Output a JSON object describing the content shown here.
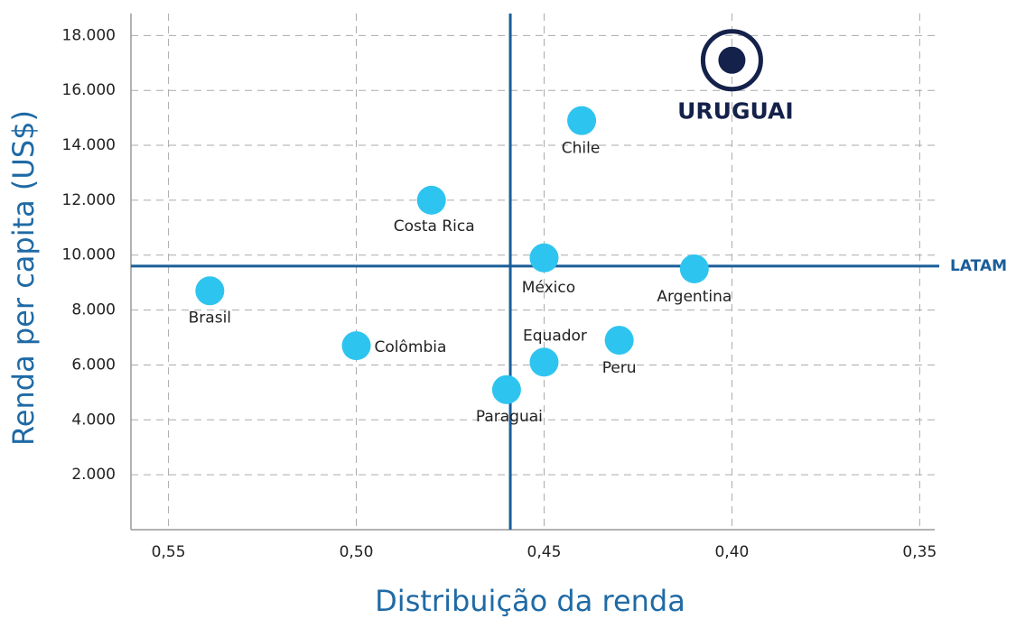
{
  "chart_data": {
    "type": "scatter",
    "x_label": "Distribuição da renda",
    "y_label": "Renda per capita (US$)",
    "xlim": [
      0.56,
      0.346
    ],
    "ylim": [
      0,
      18800
    ],
    "xticks": [
      {
        "value": 0.55,
        "label": "0,55"
      },
      {
        "value": 0.5,
        "label": "0,50"
      },
      {
        "value": 0.45,
        "label": "0,45"
      },
      {
        "value": 0.4,
        "label": "0,40"
      },
      {
        "value": 0.35,
        "label": "0,35"
      }
    ],
    "yticks": [
      {
        "value": 2000,
        "label": "2.000"
      },
      {
        "value": 4000,
        "label": "4.000"
      },
      {
        "value": 6000,
        "label": "6.000"
      },
      {
        "value": 8000,
        "label": "8.000"
      },
      {
        "value": 10000,
        "label": "10.000"
      },
      {
        "value": 12000,
        "label": "12.000"
      },
      {
        "value": 14000,
        "label": "14.000"
      },
      {
        "value": 16000,
        "label": "16.000"
      },
      {
        "value": 18000,
        "label": "18.000"
      }
    ],
    "grid": true,
    "points": [
      {
        "label": "Brasil",
        "x": 0.539,
        "y": 8700,
        "color": "#2ec4f0"
      },
      {
        "label": "Colômbia",
        "x": 0.5,
        "y": 6700,
        "color": "#2ec4f0"
      },
      {
        "label": "Costa Rica",
        "x": 0.48,
        "y": 12000,
        "color": "#2ec4f0"
      },
      {
        "label": "México",
        "x": 0.45,
        "y": 9900,
        "color": "#2ec4f0"
      },
      {
        "label": "Chile",
        "x": 0.44,
        "y": 14900,
        "color": "#2ec4f0"
      },
      {
        "label": "Equador",
        "x": 0.45,
        "y": 6100,
        "color": "#2ec4f0"
      },
      {
        "label": "Paraguai",
        "x": 0.46,
        "y": 5100,
        "color": "#2ec4f0"
      },
      {
        "label": "Peru",
        "x": 0.43,
        "y": 6900,
        "color": "#2ec4f0"
      },
      {
        "label": "Argentina",
        "x": 0.41,
        "y": 9500,
        "color": "#2ec4f0"
      },
      {
        "label": "URUGUAI",
        "x": 0.4,
        "y": 17100,
        "color": "#14214a"
      }
    ],
    "reference_lines": [
      {
        "axis": "y",
        "value": 9600,
        "label": "LATAM",
        "color": "#1a5e9a"
      },
      {
        "axis": "x",
        "value": 0.459,
        "color": "#1a5e9a"
      }
    ]
  }
}
